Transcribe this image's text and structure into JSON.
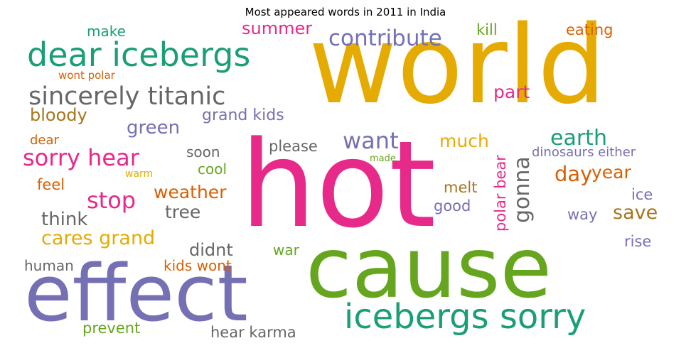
{
  "title": "Most appeared words in 2011 in India",
  "colors": {
    "yellow": "#e6ab02",
    "pink": "#e7298a",
    "green": "#66a61e",
    "purple": "#7570b3",
    "teal": "#1b9e77",
    "orange": "#d95f02",
    "gray": "#666666",
    "brown": "#a6761d"
  },
  "words": {
    "world": "world",
    "hot": "hot",
    "cause": "cause",
    "effect": "effect",
    "dear_icebergs": "dear icebergs",
    "icebergs_sorry": "icebergs sorry",
    "sincerely_titanic": "sincerely titanic",
    "contribute": "contribute",
    "sorry_hear": "sorry hear",
    "stop": "stop",
    "weather": "weather",
    "want": "want",
    "earth": "earth",
    "gonna": "gonna",
    "summer": "summer",
    "make": "make",
    "kill": "kill",
    "eating": "eating",
    "wont_polar": "wont polar",
    "bloody": "bloody",
    "green": "green",
    "grand_kids": "grand kids",
    "part": "part",
    "much": "much",
    "dear": "dear",
    "soon": "soon",
    "please": "please",
    "made": "made",
    "dinosaurs_either": "dinosaurs either",
    "warm": "warm",
    "cool": "cool",
    "day": "day",
    "year": "year",
    "feel": "feel",
    "melt": "melt",
    "ice": "ice",
    "polar_bear": "polar bear",
    "think": "think",
    "tree": "tree",
    "good": "good",
    "way": "way",
    "save": "save",
    "cares_grand": "cares grand",
    "didnt": "didnt",
    "war": "war",
    "rise": "rise",
    "human": "human",
    "kids_wont": "kids wont",
    "prevent": "prevent",
    "hear_karma": "hear karma"
  }
}
